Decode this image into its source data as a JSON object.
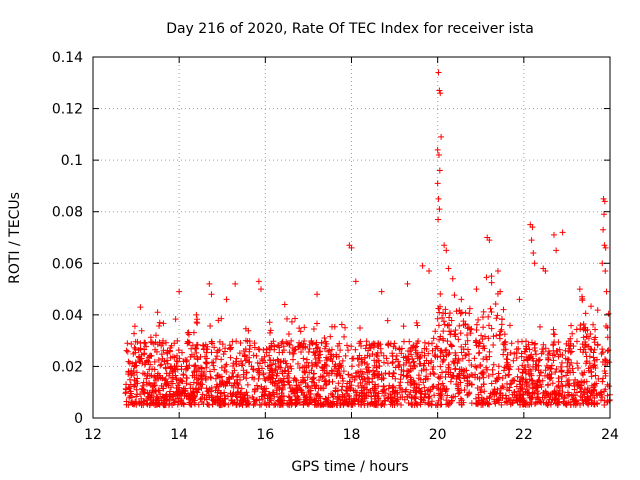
{
  "chart_data": {
    "type": "scatter",
    "title": "Day 216 of 2020, Rate Of TEC Index for receiver ista",
    "xlabel": "GPS time / hours",
    "ylabel": "ROTI / TECUs",
    "xlim": [
      12,
      24
    ],
    "ylim": [
      0,
      0.14
    ],
    "xticks": [
      12,
      14,
      16,
      18,
      20,
      22,
      24
    ],
    "xtick_labels": [
      "12",
      "14",
      "16",
      "18",
      "20",
      "22",
      "24"
    ],
    "yticks": [
      0,
      0.02,
      0.04,
      0.06,
      0.08,
      0.1,
      0.12,
      0.14
    ],
    "ytick_labels": [
      "0",
      "0.02",
      "0.04",
      "0.06",
      "0.08",
      "0.1",
      "0.12",
      "0.14"
    ],
    "grid": true,
    "marker": "plus",
    "color": "#ff0000",
    "series": [
      {
        "name": "ROTI",
        "baseline": {
          "x_range": [
            12.75,
            24.0
          ],
          "typical_range": [
            0.005,
            0.03
          ],
          "note": "dense band of points throughout the observation window"
        },
        "spikes": [
          {
            "x": 13.1,
            "y": 0.043
          },
          {
            "x": 13.5,
            "y": 0.041
          },
          {
            "x": 13.55,
            "y": 0.037
          },
          {
            "x": 14.0,
            "y": 0.049
          },
          {
            "x": 14.4,
            "y": 0.04
          },
          {
            "x": 14.7,
            "y": 0.052
          },
          {
            "x": 14.75,
            "y": 0.048
          },
          {
            "x": 15.1,
            "y": 0.046
          },
          {
            "x": 15.3,
            "y": 0.052
          },
          {
            "x": 15.85,
            "y": 0.053
          },
          {
            "x": 15.9,
            "y": 0.05
          },
          {
            "x": 16.45,
            "y": 0.044
          },
          {
            "x": 17.2,
            "y": 0.048
          },
          {
            "x": 17.95,
            "y": 0.067
          },
          {
            "x": 18.0,
            "y": 0.066
          },
          {
            "x": 18.1,
            "y": 0.053
          },
          {
            "x": 18.7,
            "y": 0.049
          },
          {
            "x": 19.3,
            "y": 0.052
          },
          {
            "x": 19.65,
            "y": 0.059
          },
          {
            "x": 19.8,
            "y": 0.057
          },
          {
            "x": 20.02,
            "y": 0.134
          },
          {
            "x": 20.04,
            "y": 0.127
          },
          {
            "x": 20.06,
            "y": 0.126
          },
          {
            "x": 20.08,
            "y": 0.109
          },
          {
            "x": 20.0,
            "y": 0.104
          },
          {
            "x": 20.03,
            "y": 0.102
          },
          {
            "x": 20.05,
            "y": 0.096
          },
          {
            "x": 20.0,
            "y": 0.091
          },
          {
            "x": 20.02,
            "y": 0.085
          },
          {
            "x": 20.04,
            "y": 0.081
          },
          {
            "x": 20.01,
            "y": 0.077
          },
          {
            "x": 20.15,
            "y": 0.067
          },
          {
            "x": 20.2,
            "y": 0.065
          },
          {
            "x": 20.25,
            "y": 0.058
          },
          {
            "x": 20.55,
            "y": 0.046
          },
          {
            "x": 20.9,
            "y": 0.05
          },
          {
            "x": 21.15,
            "y": 0.07
          },
          {
            "x": 21.2,
            "y": 0.069
          },
          {
            "x": 21.25,
            "y": 0.055
          },
          {
            "x": 21.4,
            "y": 0.057
          },
          {
            "x": 21.45,
            "y": 0.049
          },
          {
            "x": 21.9,
            "y": 0.046
          },
          {
            "x": 22.15,
            "y": 0.075
          },
          {
            "x": 22.2,
            "y": 0.074
          },
          {
            "x": 22.18,
            "y": 0.069
          },
          {
            "x": 22.22,
            "y": 0.064
          },
          {
            "x": 22.25,
            "y": 0.06
          },
          {
            "x": 22.45,
            "y": 0.058
          },
          {
            "x": 22.5,
            "y": 0.057
          },
          {
            "x": 22.7,
            "y": 0.071
          },
          {
            "x": 22.75,
            "y": 0.065
          },
          {
            "x": 22.9,
            "y": 0.072
          },
          {
            "x": 23.3,
            "y": 0.05
          },
          {
            "x": 23.35,
            "y": 0.047
          },
          {
            "x": 23.85,
            "y": 0.085
          },
          {
            "x": 23.88,
            "y": 0.084
          },
          {
            "x": 23.86,
            "y": 0.079
          },
          {
            "x": 23.84,
            "y": 0.073
          },
          {
            "x": 23.87,
            "y": 0.067
          },
          {
            "x": 23.9,
            "y": 0.066
          },
          {
            "x": 23.82,
            "y": 0.06
          },
          {
            "x": 23.89,
            "y": 0.057
          },
          {
            "x": 23.92,
            "y": 0.049
          }
        ]
      }
    ]
  }
}
